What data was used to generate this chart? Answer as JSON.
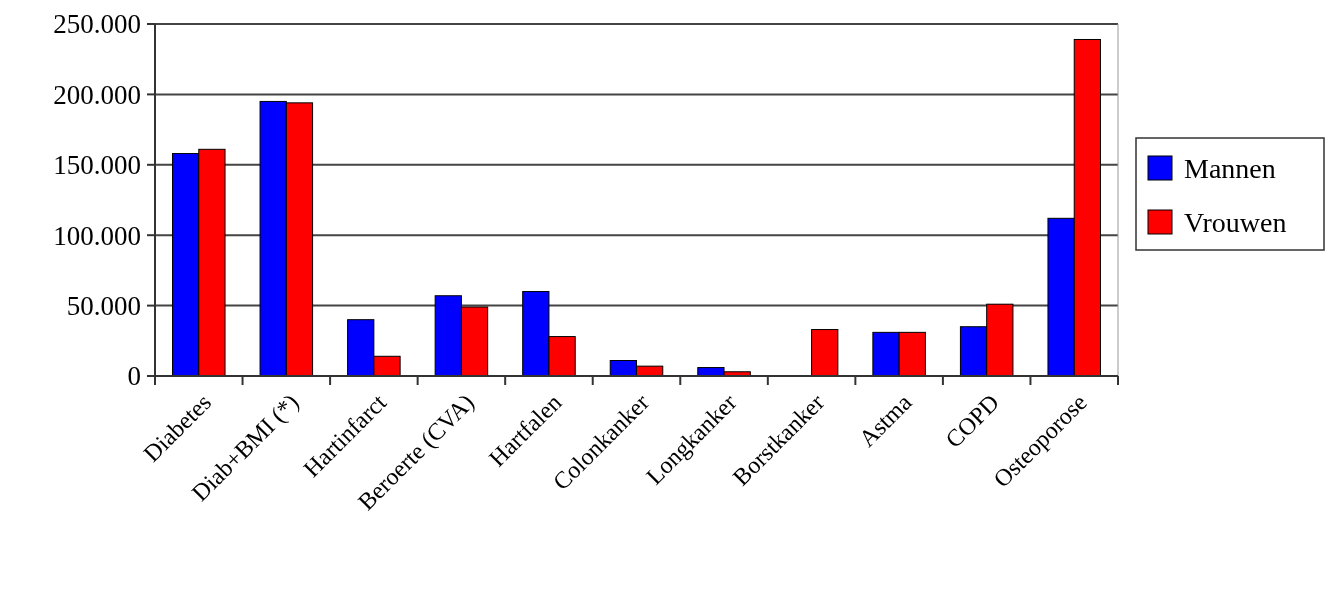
{
  "chart_data": {
    "type": "bar",
    "categories": [
      "Diabetes",
      "Diab+BMI (*)",
      "Hartinfarct",
      "Beroerte (CVA)",
      "Hartfalen",
      "Colonkanker",
      "Longkanker",
      "Borstkanker",
      "Astma",
      "COPD",
      "Osteoporose"
    ],
    "series": [
      {
        "name": "Mannen",
        "color": "#0000ff",
        "values": [
          158000,
          195000,
          40000,
          57000,
          60000,
          11000,
          6000,
          null,
          31000,
          35000,
          112000
        ]
      },
      {
        "name": "Vrouwen",
        "color": "#ff0000",
        "values": [
          161000,
          194000,
          14000,
          49000,
          28000,
          7000,
          3000,
          33000,
          31000,
          51000,
          239000
        ]
      }
    ],
    "ylim": [
      0,
      250000
    ],
    "yticks": [
      {
        "value": 0,
        "label": "0"
      },
      {
        "value": 50000,
        "label": "50.000"
      },
      {
        "value": 100000,
        "label": "100.000"
      },
      {
        "value": 150000,
        "label": "150.000"
      },
      {
        "value": 200000,
        "label": "200.000"
      },
      {
        "value": 250000,
        "label": "250.000"
      }
    ],
    "grid": "y",
    "legend": "right"
  }
}
